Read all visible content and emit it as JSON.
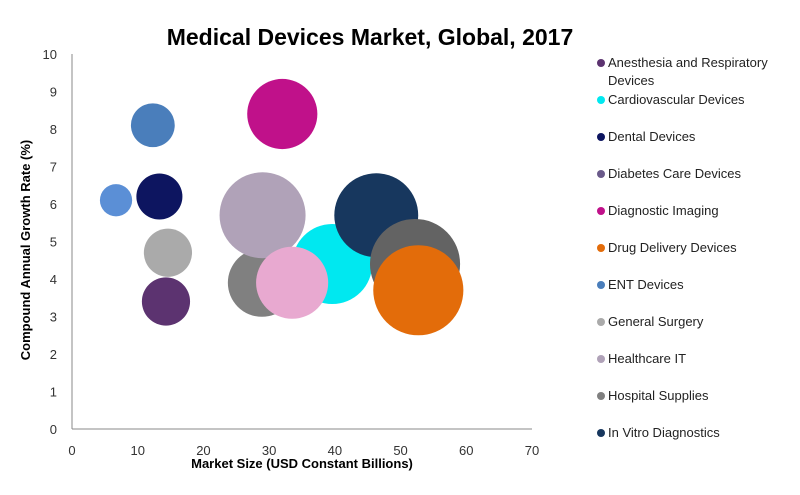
{
  "chart_data": {
    "type": "bubble",
    "title": "Medical Devices Market, Global, 2017",
    "xlabel": "Market Size (USD Constant Billions)",
    "ylabel": "Compound Annual Growth Rate (%)",
    "xlim": [
      0,
      70
    ],
    "ylim": [
      0,
      10
    ],
    "xticks": [
      0,
      10,
      20,
      30,
      40,
      50,
      60,
      70
    ],
    "yticks": [
      0,
      1,
      2,
      3,
      4,
      5,
      6,
      7,
      8,
      9,
      10
    ],
    "grid": false,
    "legend_position": "right",
    "series": [
      {
        "name": "Anesthesia and Respiratory Devices",
        "x": 14.3,
        "y": 3.4,
        "size": 5.8,
        "color": "#5c3370"
      },
      {
        "name": "Cardiovascular Devices",
        "x": 39.6,
        "y": 4.4,
        "size": 16,
        "color": "#00e8f0"
      },
      {
        "name": "Dental Devices",
        "x": 13.3,
        "y": 6.2,
        "size": 5.3,
        "color": "#0d1560"
      },
      {
        "name": "Diabetes Care Devices",
        "color": "#6a5a8a"
      },
      {
        "name": "Diagnostic Imaging",
        "x": 32.0,
        "y": 8.4,
        "size": 12.3,
        "color": "#c0118a"
      },
      {
        "name": "Drug Delivery Devices",
        "x": 52.7,
        "y": 3.7,
        "size": 20.3,
        "color": "#e36c0a"
      },
      {
        "name": "ENT Devices",
        "x": 12.3,
        "y": 8.1,
        "size": 4.8,
        "color": "#4a7ebb"
      },
      {
        "name": "General Surgery",
        "x": 14.6,
        "y": 4.7,
        "size": 5.8,
        "color": "#aaaaaa"
      },
      {
        "name": "Healthcare IT",
        "x": 29.0,
        "y": 5.7,
        "size": 18.5,
        "color": "#b0a2b8"
      },
      {
        "name": "Hospital Supplies",
        "x": 28.9,
        "y": 3.9,
        "size": 11.6,
        "color": "#808080"
      },
      {
        "name": "In Vitro Diagnostics",
        "x": 46.3,
        "y": 5.7,
        "size": 17.6,
        "color": "#17375e"
      },
      {
        "x": 52.2,
        "y": 4.4,
        "size": 20.3,
        "color": "#636363"
      },
      {
        "x": 33.5,
        "y": 3.9,
        "size": 13,
        "color": "#e8a9d0"
      },
      {
        "x": 6.7,
        "y": 6.1,
        "size": 2.6,
        "color": "#5b8fd6"
      }
    ]
  }
}
